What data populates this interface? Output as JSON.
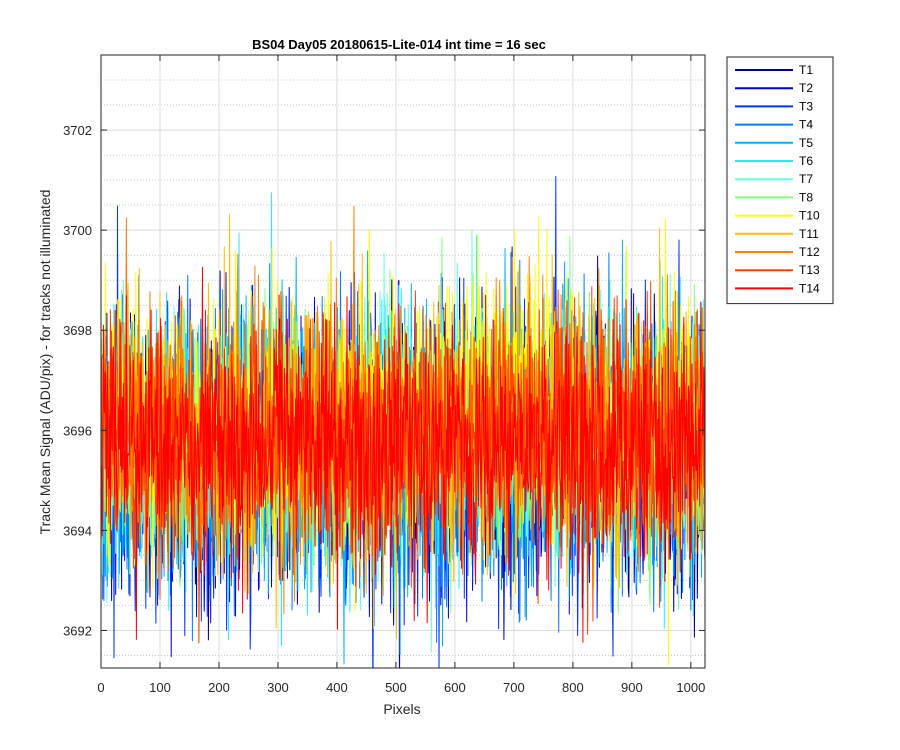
{
  "chart_data": {
    "type": "line",
    "title": "BS04 Day05 20180615-Lite-014 int time = 16 sec",
    "xlabel": "Pixels",
    "ylabel": "Track Mean Signal (ADU/pix) - for tracks not illuminated",
    "xlim": [
      0,
      1024
    ],
    "ylim": [
      3691.25,
      3703.5
    ],
    "xticks": [
      0,
      100,
      200,
      300,
      400,
      500,
      600,
      700,
      800,
      900,
      1000
    ],
    "yticks": [
      3692,
      3694,
      3696,
      3698,
      3700,
      3702
    ],
    "grid": true,
    "minor_grid": true,
    "legend_location": "outside-top-right",
    "series": [
      {
        "name": "T1",
        "color": "#00008f",
        "mean": 3695.6,
        "noise": 1.3
      },
      {
        "name": "T2",
        "color": "#0000d9",
        "mean": 3695.5,
        "noise": 1.35
      },
      {
        "name": "T3",
        "color": "#0033ff",
        "mean": 3695.5,
        "noise": 1.35
      },
      {
        "name": "T4",
        "color": "#0080ff",
        "mean": 3695.6,
        "noise": 1.3
      },
      {
        "name": "T5",
        "color": "#00b3ff",
        "mean": 3695.7,
        "noise": 1.3
      },
      {
        "name": "T6",
        "color": "#1cf2ff",
        "mean": 3695.8,
        "noise": 1.3
      },
      {
        "name": "T7",
        "color": "#66ffd9",
        "mean": 3695.8,
        "noise": 1.25
      },
      {
        "name": "T8",
        "color": "#7fff7f",
        "mean": 3695.9,
        "noise": 1.25
      },
      {
        "name": "T10",
        "color": "#ffff00",
        "mean": 3696.1,
        "noise": 1.3
      },
      {
        "name": "T11",
        "color": "#ffbf00",
        "mean": 3695.9,
        "noise": 1.3
      },
      {
        "name": "T12",
        "color": "#ff8000",
        "mean": 3695.9,
        "noise": 1.25
      },
      {
        "name": "T13",
        "color": "#ff4000",
        "mean": 3695.8,
        "noise": 1.2
      },
      {
        "name": "T14",
        "color": "#ff0000",
        "mean": 3695.7,
        "noise": 1.2
      }
    ]
  }
}
